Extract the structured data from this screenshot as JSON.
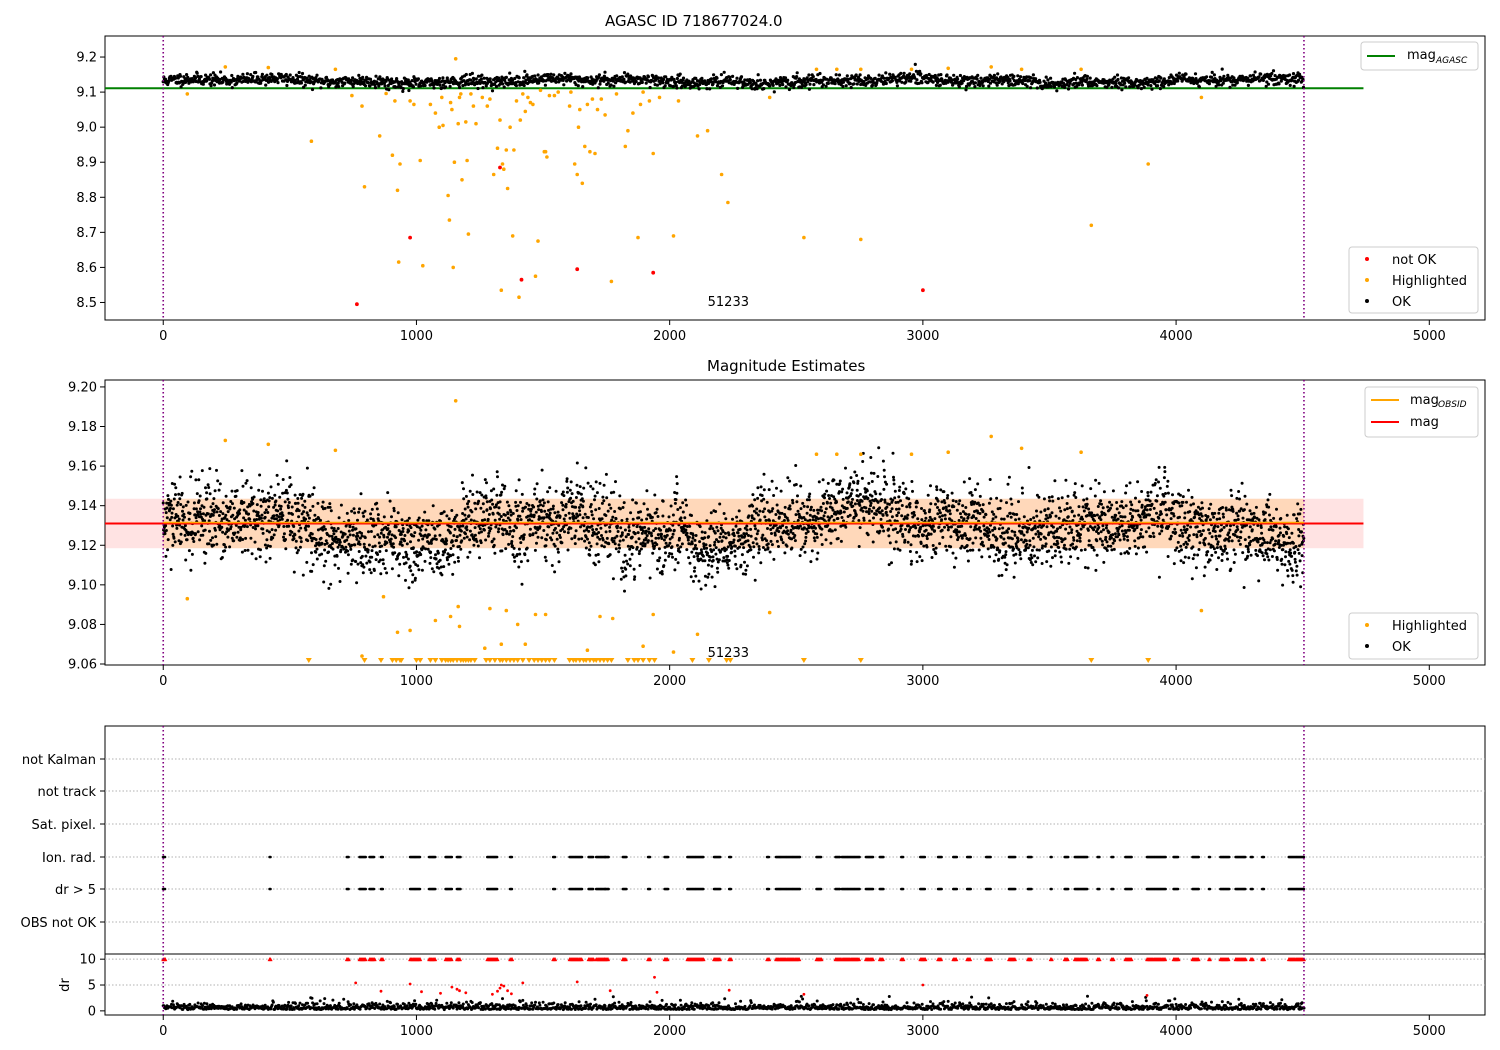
{
  "chart_data": [
    {
      "type": "scatter",
      "title": "AGASC ID 718677024.0",
      "xlim": [
        -230,
        5220
      ],
      "ylim": [
        8.45,
        9.26
      ],
      "xticks": [
        0,
        1000,
        2000,
        3000,
        4000,
        5000
      ],
      "yticks": [
        8.5,
        8.6,
        8.7,
        8.8,
        8.9,
        9.0,
        9.1,
        9.2
      ],
      "ytick_labels": [
        "8.5",
        "8.6",
        "8.7",
        "8.8",
        "8.9",
        "9.0",
        "9.1",
        "9.2"
      ],
      "obs_range": [
        0,
        4505
      ],
      "obsid_label": "51233",
      "obsid_label_pos": [
        2150,
        8.49
      ],
      "ref_line": {
        "name": "mag_AGASC",
        "value": 9.111,
        "x": [
          -230,
          4740
        ],
        "color": "#008000"
      },
      "band_mean": 9.132,
      "band_spread": 0.013,
      "legend_top": [
        {
          "label": "mag",
          "sub": "AGASC",
          "color": "#008000"
        }
      ],
      "legend_bottom": [
        {
          "label": "not OK",
          "color": "#ff0000"
        },
        {
          "label": "Highlighted",
          "color": "#ffa500"
        },
        {
          "label": "OK",
          "color": "#000000"
        }
      ],
      "series_highlighted": [
        [
          95,
          9.095
        ],
        [
          245,
          9.172
        ],
        [
          415,
          9.17
        ],
        [
          585,
          8.96
        ],
        [
          680,
          9.165
        ],
        [
          745,
          9.09
        ],
        [
          785,
          9.06
        ],
        [
          795,
          8.83
        ],
        [
          855,
          8.975
        ],
        [
          880,
          9.096
        ],
        [
          905,
          8.92
        ],
        [
          915,
          9.075
        ],
        [
          925,
          8.82
        ],
        [
          930,
          8.615
        ],
        [
          935,
          8.895
        ],
        [
          975,
          9.075
        ],
        [
          990,
          9.065
        ],
        [
          1015,
          8.905
        ],
        [
          1025,
          8.605
        ],
        [
          1055,
          9.065
        ],
        [
          1075,
          9.04
        ],
        [
          1090,
          9.0
        ],
        [
          1100,
          9.085
        ],
        [
          1105,
          9.005
        ],
        [
          1125,
          8.805
        ],
        [
          1130,
          8.735
        ],
        [
          1135,
          9.07
        ],
        [
          1140,
          9.05
        ],
        [
          1145,
          8.6
        ],
        [
          1150,
          8.9
        ],
        [
          1155,
          9.195
        ],
        [
          1165,
          9.01
        ],
        [
          1170,
          9.085
        ],
        [
          1175,
          9.095
        ],
        [
          1180,
          8.85
        ],
        [
          1195,
          9.015
        ],
        [
          1200,
          8.905
        ],
        [
          1205,
          8.695
        ],
        [
          1215,
          9.095
        ],
        [
          1225,
          9.06
        ],
        [
          1235,
          9.01
        ],
        [
          1260,
          9.085
        ],
        [
          1280,
          9.06
        ],
        [
          1290,
          9.08
        ],
        [
          1305,
          8.865
        ],
        [
          1320,
          8.94
        ],
        [
          1330,
          9.02
        ],
        [
          1335,
          8.535
        ],
        [
          1340,
          8.895
        ],
        [
          1345,
          8.88
        ],
        [
          1355,
          8.935
        ],
        [
          1360,
          8.825
        ],
        [
          1370,
          9.0
        ],
        [
          1380,
          8.69
        ],
        [
          1385,
          8.935
        ],
        [
          1395,
          9.075
        ],
        [
          1405,
          8.515
        ],
        [
          1410,
          9.02
        ],
        [
          1420,
          9.095
        ],
        [
          1430,
          9.045
        ],
        [
          1440,
          9.085
        ],
        [
          1450,
          9.07
        ],
        [
          1460,
          9.065
        ],
        [
          1470,
          8.575
        ],
        [
          1480,
          8.675
        ],
        [
          1490,
          9.105
        ],
        [
          1505,
          8.93
        ],
        [
          1510,
          8.93
        ],
        [
          1515,
          8.915
        ],
        [
          1525,
          9.09
        ],
        [
          1545,
          9.09
        ],
        [
          1560,
          9.1
        ],
        [
          1605,
          9.06
        ],
        [
          1610,
          9.1
        ],
        [
          1625,
          8.895
        ],
        [
          1635,
          8.865
        ],
        [
          1640,
          9.0
        ],
        [
          1645,
          9.05
        ],
        [
          1655,
          8.84
        ],
        [
          1665,
          8.945
        ],
        [
          1675,
          9.065
        ],
        [
          1685,
          8.93
        ],
        [
          1695,
          9.08
        ],
        [
          1705,
          8.925
        ],
        [
          1715,
          9.05
        ],
        [
          1730,
          9.08
        ],
        [
          1745,
          9.035
        ],
        [
          1770,
          8.56
        ],
        [
          1790,
          9.095
        ],
        [
          1825,
          8.945
        ],
        [
          1835,
          8.99
        ],
        [
          1855,
          9.04
        ],
        [
          1875,
          8.685
        ],
        [
          1885,
          9.065
        ],
        [
          1895,
          9.1
        ],
        [
          1920,
          9.075
        ],
        [
          1935,
          8.925
        ],
        [
          1960,
          9.085
        ],
        [
          2015,
          8.69
        ],
        [
          2035,
          9.075
        ],
        [
          2110,
          8.975
        ],
        [
          2150,
          8.99
        ],
        [
          2205,
          8.865
        ],
        [
          2230,
          8.785
        ],
        [
          2395,
          9.085
        ],
        [
          2530,
          8.685
        ],
        [
          2580,
          9.165
        ],
        [
          2660,
          9.165
        ],
        [
          2755,
          8.68
        ],
        [
          2755,
          9.165
        ],
        [
          2955,
          9.165
        ],
        [
          3100,
          9.168
        ],
        [
          3270,
          9.172
        ],
        [
          3390,
          9.165
        ],
        [
          3625,
          9.165
        ],
        [
          3665,
          8.72
        ],
        [
          3890,
          8.895
        ],
        [
          4100,
          9.085
        ]
      ],
      "series_notok": [
        [
          765,
          8.495
        ],
        [
          975,
          8.685
        ],
        [
          1330,
          8.885
        ],
        [
          1415,
          8.565
        ],
        [
          1635,
          8.595
        ],
        [
          1935,
          8.585
        ],
        [
          3000,
          8.535
        ]
      ]
    },
    {
      "type": "scatter",
      "title": "Magnitude Estimates",
      "xlim": [
        -230,
        5220
      ],
      "ylim": [
        9.0595,
        9.2035
      ],
      "xticks": [
        0,
        1000,
        2000,
        3000,
        4000,
        5000
      ],
      "yticks": [
        9.06,
        9.08,
        9.1,
        9.12,
        9.14,
        9.16,
        9.18,
        9.2
      ],
      "ytick_labels": [
        "9.06",
        "9.08",
        "9.10",
        "9.12",
        "9.14",
        "9.16",
        "9.18",
        "9.20"
      ],
      "obs_range": [
        0,
        4505
      ],
      "obsid_label": "51233",
      "obsid_label_pos": [
        2150,
        9.0635
      ],
      "mean_line": {
        "name": "mag",
        "value": 9.131,
        "x": [
          -230,
          4740
        ],
        "color": "#ff0000"
      },
      "obsid_line": {
        "name": "mag_OBSID",
        "value": 9.131,
        "x": [
          0,
          4505
        ],
        "color": "#ffa500"
      },
      "band": {
        "lo": 9.1185,
        "hi": 9.1435
      },
      "legend_top": [
        {
          "label": "mag",
          "sub": "OBSID",
          "color": "#ffa500"
        },
        {
          "label": "mag",
          "sub": "",
          "color": "#ff0000"
        }
      ],
      "legend_bottom": [
        {
          "label": "Highlighted",
          "color": "#ffa500"
        },
        {
          "label": "OK",
          "color": "#000000"
        }
      ],
      "series_highlighted": [
        [
          95,
          9.093
        ],
        [
          245,
          9.173
        ],
        [
          415,
          9.171
        ],
        [
          680,
          9.168
        ],
        [
          785,
          9.064
        ],
        [
          870,
          9.094
        ],
        [
          925,
          9.076
        ],
        [
          975,
          9.077
        ],
        [
          1075,
          9.082
        ],
        [
          1135,
          9.084
        ],
        [
          1155,
          9.193
        ],
        [
          1165,
          9.089
        ],
        [
          1170,
          9.079
        ],
        [
          1270,
          9.068
        ],
        [
          1290,
          9.088
        ],
        [
          1335,
          9.07
        ],
        [
          1355,
          9.087
        ],
        [
          1400,
          9.08
        ],
        [
          1430,
          9.07
        ],
        [
          1470,
          9.085
        ],
        [
          1510,
          9.085
        ],
        [
          1675,
          9.067
        ],
        [
          1725,
          9.084
        ],
        [
          1775,
          9.083
        ],
        [
          1895,
          9.069
        ],
        [
          1935,
          9.085
        ],
        [
          2015,
          9.066
        ],
        [
          2110,
          9.075
        ],
        [
          2395,
          9.086
        ],
        [
          2580,
          9.166
        ],
        [
          2660,
          9.166
        ],
        [
          2755,
          9.166
        ],
        [
          2955,
          9.166
        ],
        [
          3100,
          9.167
        ],
        [
          3270,
          9.175
        ],
        [
          3390,
          9.169
        ],
        [
          3625,
          9.167
        ],
        [
          4100,
          9.087
        ]
      ],
      "clipped_markers_x": [
        575,
        795,
        860,
        905,
        920,
        935,
        940,
        1000,
        1015,
        1055,
        1075,
        1100,
        1115,
        1125,
        1135,
        1145,
        1160,
        1175,
        1185,
        1195,
        1205,
        1215,
        1230,
        1275,
        1290,
        1310,
        1330,
        1340,
        1355,
        1370,
        1385,
        1400,
        1420,
        1445,
        1465,
        1480,
        1495,
        1510,
        1525,
        1545,
        1605,
        1620,
        1630,
        1645,
        1660,
        1670,
        1685,
        1700,
        1710,
        1725,
        1740,
        1755,
        1770,
        1835,
        1860,
        1875,
        1895,
        1920,
        1940,
        2090,
        2155,
        2225,
        2240,
        2530,
        2755,
        3665,
        3890
      ]
    },
    {
      "type": "scatter",
      "title": "",
      "xlim": [
        -230,
        5220
      ],
      "row_labels": [
        "not Kalman",
        "not track",
        "Sat. pixel.",
        "Ion. rad.",
        "dr > 5",
        "OBS not OK"
      ],
      "flag_runs": [
        [
          0,
          10
        ],
        [
          420,
          425
        ],
        [
          725,
          735
        ],
        [
          775,
          800
        ],
        [
          815,
          835
        ],
        [
          860,
          870
        ],
        [
          975,
          1015
        ],
        [
          1050,
          1075
        ],
        [
          1115,
          1140
        ],
        [
          1160,
          1175
        ],
        [
          1280,
          1320
        ],
        [
          1370,
          1380
        ],
        [
          1540,
          1550
        ],
        [
          1605,
          1655
        ],
        [
          1680,
          1700
        ],
        [
          1710,
          1745
        ],
        [
          1745,
          1760
        ],
        [
          1815,
          1830
        ],
        [
          1915,
          1925
        ],
        [
          1980,
          1995
        ],
        [
          2070,
          2135
        ],
        [
          2175,
          2200
        ],
        [
          2235,
          2245
        ],
        [
          2385,
          2395
        ],
        [
          2420,
          2515
        ],
        [
          2580,
          2600
        ],
        [
          2655,
          2675
        ],
        [
          2680,
          2750
        ],
        [
          2775,
          2805
        ],
        [
          2830,
          2845
        ],
        [
          2915,
          2925
        ],
        [
          2990,
          3010
        ],
        [
          3060,
          3075
        ],
        [
          3120,
          3135
        ],
        [
          3175,
          3190
        ],
        [
          3250,
          3270
        ],
        [
          3340,
          3365
        ],
        [
          3415,
          3430
        ],
        [
          3505,
          3510
        ],
        [
          3560,
          3575
        ],
        [
          3600,
          3650
        ],
        [
          3690,
          3700
        ],
        [
          3745,
          3755
        ],
        [
          3800,
          3825
        ],
        [
          3885,
          3960
        ],
        [
          3990,
          4010
        ],
        [
          4065,
          4090
        ],
        [
          4130,
          4135
        ],
        [
          4175,
          4210
        ],
        [
          4235,
          4275
        ],
        [
          4295,
          4305
        ],
        [
          4340,
          4350
        ],
        [
          4445,
          4505
        ]
      ]
    },
    {
      "type": "scatter",
      "title": "",
      "ylabel": "dr",
      "xlim": [
        -230,
        5220
      ],
      "ylim": [
        -0.8,
        11
      ],
      "xticks": [
        0,
        1000,
        2000,
        3000,
        4000,
        5000
      ],
      "yticks": [
        0,
        5,
        10
      ],
      "ytick_labels": [
        "0",
        "5",
        "10"
      ],
      "clip_value": 10,
      "outliers": [
        [
          760,
          5.4
        ],
        [
          860,
          3.8
        ],
        [
          975,
          5.2
        ],
        [
          1020,
          3.7
        ],
        [
          1095,
          3.4
        ],
        [
          1140,
          4.6
        ],
        [
          1160,
          4.2
        ],
        [
          1170,
          3.9
        ],
        [
          1195,
          3.5
        ],
        [
          1300,
          3.2
        ],
        [
          1320,
          3.8
        ],
        [
          1330,
          4.4
        ],
        [
          1335,
          5.0
        ],
        [
          1345,
          4.8
        ],
        [
          1360,
          3.9
        ],
        [
          1375,
          3.3
        ],
        [
          1420,
          5.4
        ],
        [
          1635,
          5.6
        ],
        [
          1765,
          3.9
        ],
        [
          1940,
          6.5
        ],
        [
          1950,
          3.6
        ],
        [
          2235,
          4.0
        ],
        [
          2530,
          3.2
        ],
        [
          3000,
          5.0
        ],
        [
          3885,
          3.0
        ]
      ]
    }
  ]
}
